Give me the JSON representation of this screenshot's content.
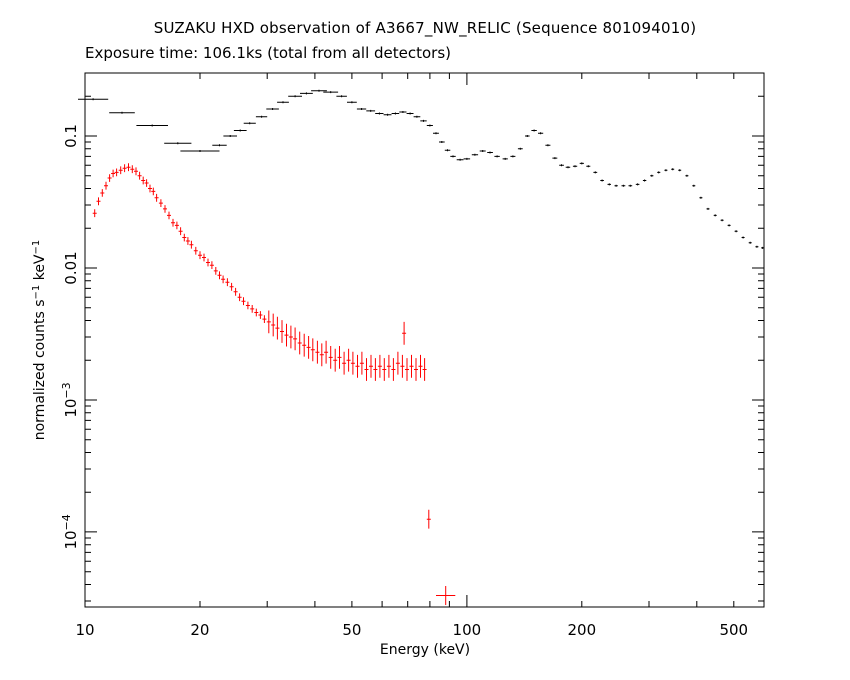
{
  "chart_data": {
    "type": "scatter",
    "title": "SUZAKU HXD observation of A3667_NW_RELIC (Sequence 801094010)",
    "subtitle": "Exposure time: 106.1ks (total from all detectors)",
    "xlabel": "Energy (keV)",
    "ylabel": "normalized counts s-1 keV-1",
    "xscale": "log",
    "yscale": "log",
    "xlim": [
      10,
      600
    ],
    "ylim": [
      2.7e-05,
      0.3
    ],
    "x_ticks": [
      {
        "value": 10,
        "label": "10"
      },
      {
        "value": 20,
        "label": "20"
      },
      {
        "value": 50,
        "label": "50"
      },
      {
        "value": 100,
        "label": "100"
      },
      {
        "value": 200,
        "label": "200"
      },
      {
        "value": 500,
        "label": "500"
      }
    ],
    "y_ticks": [
      {
        "value": 0.1,
        "base": "0.1",
        "exp": ""
      },
      {
        "value": 0.01,
        "base": "0.01",
        "exp": ""
      },
      {
        "value": 0.001,
        "base": "10",
        "exp": "−3"
      },
      {
        "value": 0.0001,
        "base": "10",
        "exp": "−4"
      }
    ],
    "colors": {
      "gso": "#000000",
      "pin": "#ff0000"
    },
    "series": [
      {
        "color": "#000000",
        "points": [
          [
            10.5,
            0.19,
            1.0
          ],
          [
            12.5,
            0.15,
            1.0
          ],
          [
            15,
            0.12,
            1.5
          ],
          [
            17.5,
            0.088,
            1.5
          ],
          [
            20,
            0.077,
            2.5
          ],
          [
            22.5,
            0.085,
            1.0
          ],
          [
            24,
            0.1,
            1.0
          ],
          [
            25.5,
            0.11,
            1.0
          ],
          [
            27,
            0.125,
            1.0
          ],
          [
            29,
            0.14,
            1.0
          ],
          [
            31,
            0.16,
            1.2
          ],
          [
            33,
            0.18,
            1.2
          ],
          [
            35.5,
            0.2,
            1.5
          ],
          [
            38,
            0.21,
            1.5
          ],
          [
            41,
            0.22,
            2.0
          ],
          [
            44,
            0.215,
            2.0
          ],
          [
            47,
            0.2,
            1.5
          ],
          [
            50,
            0.18,
            1.5
          ],
          [
            53,
            0.16,
            1.5
          ],
          [
            56,
            0.155,
            1.5
          ],
          [
            59,
            0.148,
            1.5
          ],
          [
            62,
            0.145,
            1.5
          ],
          [
            65,
            0.148,
            1.5
          ],
          [
            68,
            0.152,
            1.5
          ],
          [
            71,
            0.148,
            1.5
          ],
          [
            74,
            0.14,
            1.5
          ],
          [
            77,
            0.13,
            1.5
          ],
          [
            80,
            0.12,
            1.5
          ],
          [
            83,
            0.105,
            1.5
          ],
          [
            86,
            0.09,
            1.5
          ],
          [
            89,
            0.078,
            1.5
          ],
          [
            92,
            0.07,
            1.5
          ],
          [
            96,
            0.066,
            2.0
          ],
          [
            100,
            0.067,
            2.0
          ],
          [
            105,
            0.072,
            2.0
          ],
          [
            110,
            0.077,
            2.0
          ],
          [
            115,
            0.075,
            2.0
          ],
          [
            120,
            0.07,
            2.0
          ],
          [
            126,
            0.067,
            2.0
          ],
          [
            132,
            0.07,
            2.0
          ],
          [
            138,
            0.08,
            2.0
          ],
          [
            144,
            0.1,
            2.0
          ],
          [
            150,
            0.11,
            2.5
          ],
          [
            156,
            0.105,
            2.5
          ],
          [
            163,
            0.085,
            2.5
          ],
          [
            170,
            0.068,
            2.5
          ],
          [
            177,
            0.06,
            2.5
          ],
          [
            184,
            0.058,
            2.5
          ],
          [
            192,
            0.059,
            2.5
          ],
          [
            200,
            0.062,
            2.5
          ],
          [
            208,
            0.059,
            2.5
          ],
          [
            217,
            0.053,
            2.5
          ],
          [
            226,
            0.046,
            2.5
          ],
          [
            236,
            0.043,
            2.5
          ],
          [
            246,
            0.042,
            2.5
          ],
          [
            257,
            0.042,
            3.0
          ],
          [
            268,
            0.042,
            3.0
          ],
          [
            280,
            0.043,
            3.0
          ],
          [
            292,
            0.046,
            3.0
          ],
          [
            305,
            0.05,
            3.0
          ],
          [
            318,
            0.053,
            3.0
          ],
          [
            332,
            0.055,
            3.0
          ],
          [
            346,
            0.056,
            3.0
          ],
          [
            361,
            0.055,
            3.0
          ],
          [
            377,
            0.05,
            3.0
          ],
          [
            393,
            0.042,
            3.0
          ],
          [
            410,
            0.034,
            3.0
          ],
          [
            428,
            0.028,
            3.0
          ],
          [
            447,
            0.025,
            3.0
          ],
          [
            466,
            0.023,
            3.0
          ],
          [
            486,
            0.021,
            3.0
          ],
          [
            507,
            0.019,
            3.0
          ],
          [
            529,
            0.017,
            3.0
          ],
          [
            552,
            0.0155,
            3.0
          ],
          [
            575,
            0.0145,
            3.0
          ],
          [
            595,
            0.0142,
            3.0
          ]
        ]
      },
      {
        "color": "#ff0000",
        "points": [
          [
            10.6,
            0.026,
            0.0025
          ],
          [
            10.85,
            0.032,
            0.0025
          ],
          [
            11.1,
            0.037,
            0.003
          ],
          [
            11.35,
            0.042,
            0.003
          ],
          [
            11.6,
            0.048,
            0.003
          ],
          [
            11.85,
            0.052,
            0.003
          ],
          [
            12.1,
            0.053,
            0.003
          ],
          [
            12.4,
            0.055,
            0.003
          ],
          [
            12.7,
            0.057,
            0.003
          ],
          [
            13.0,
            0.058,
            0.003
          ],
          [
            13.3,
            0.056,
            0.003
          ],
          [
            13.6,
            0.054,
            0.003
          ],
          [
            13.9,
            0.05,
            0.003
          ],
          [
            14.2,
            0.046,
            0.003
          ],
          [
            14.5,
            0.044,
            0.003
          ],
          [
            14.8,
            0.04,
            0.003
          ],
          [
            15.1,
            0.038,
            0.003
          ],
          [
            15.4,
            0.034,
            0.003
          ],
          [
            15.8,
            0.031,
            0.003
          ],
          [
            16.2,
            0.028,
            0.003
          ],
          [
            16.6,
            0.025,
            0.003
          ],
          [
            17.0,
            0.022,
            0.003
          ],
          [
            17.4,
            0.021,
            0.003
          ],
          [
            17.8,
            0.019,
            0.003
          ],
          [
            18.2,
            0.017,
            0.003
          ],
          [
            18.6,
            0.016,
            0.003
          ],
          [
            19.0,
            0.015,
            0.003
          ],
          [
            19.5,
            0.0135,
            0.003
          ],
          [
            20.0,
            0.0125,
            0.003
          ],
          [
            20.5,
            0.012,
            0.003
          ],
          [
            21.0,
            0.011,
            0.003
          ],
          [
            21.5,
            0.0105,
            0.003
          ],
          [
            22.0,
            0.0095,
            0.003
          ],
          [
            22.5,
            0.0088,
            0.003
          ],
          [
            23.0,
            0.0082,
            0.003
          ],
          [
            23.6,
            0.0078,
            0.003
          ],
          [
            24.2,
            0.0072,
            0.003
          ],
          [
            24.8,
            0.0066,
            0.003
          ],
          [
            25.4,
            0.006,
            0.003
          ],
          [
            26.0,
            0.0056,
            0.003
          ],
          [
            26.7,
            0.0052,
            0.003
          ],
          [
            27.4,
            0.0049,
            0.003
          ],
          [
            28.1,
            0.0046,
            0.003
          ],
          [
            28.8,
            0.0044,
            0.003
          ],
          [
            29.5,
            0.0041,
            0.003
          ],
          [
            30.3,
            0.0039,
            0.003
          ],
          [
            31.1,
            0.0037,
            0.003
          ],
          [
            31.9,
            0.0035,
            0.003
          ],
          [
            32.8,
            0.0033,
            0.003
          ],
          [
            33.7,
            0.0031,
            0.003
          ],
          [
            34.6,
            0.003,
            0.003
          ],
          [
            35.5,
            0.0029,
            0.003
          ],
          [
            36.5,
            0.0027,
            0.003
          ],
          [
            37.5,
            0.0026,
            0.003
          ],
          [
            38.5,
            0.0025,
            0.003
          ],
          [
            39.5,
            0.0024,
            0.003
          ],
          [
            40.6,
            0.0023,
            0.003
          ],
          [
            41.7,
            0.0022,
            0.003
          ],
          [
            42.8,
            0.0023,
            0.003
          ],
          [
            44.0,
            0.0021,
            0.003
          ],
          [
            45.2,
            0.002,
            0.003
          ],
          [
            46.4,
            0.0021,
            0.003
          ],
          [
            47.7,
            0.0019,
            0.003
          ],
          [
            49.0,
            0.002,
            0.003
          ],
          [
            50.3,
            0.0019,
            0.003
          ],
          [
            51.7,
            0.0018,
            0.003
          ],
          [
            53.1,
            0.0019,
            0.003
          ],
          [
            54.6,
            0.0017,
            0.003
          ],
          [
            56.1,
            0.0018,
            0.003
          ],
          [
            57.6,
            0.0017,
            0.003
          ],
          [
            59.2,
            0.0018,
            0.003
          ],
          [
            60.8,
            0.0017,
            0.003
          ],
          [
            62.5,
            0.0018,
            0.003
          ],
          [
            64.2,
            0.0017,
            0.003
          ],
          [
            66.0,
            0.0019,
            0.003
          ],
          [
            67.8,
            0.0018,
            0.003
          ],
          [
            68.5,
            0.0032,
            0.003
          ],
          [
            69.7,
            0.0017,
            0.003
          ],
          [
            71.6,
            0.0018,
            0.003
          ],
          [
            73.6,
            0.0017,
            0.003
          ],
          [
            75.6,
            0.0018,
            0.003
          ],
          [
            77.5,
            0.0017,
            0.003
          ],
          [
            79.5,
            0.000125,
            0.01
          ],
          [
            88.0,
            3.3e-05,
            0.06
          ]
        ]
      }
    ]
  }
}
